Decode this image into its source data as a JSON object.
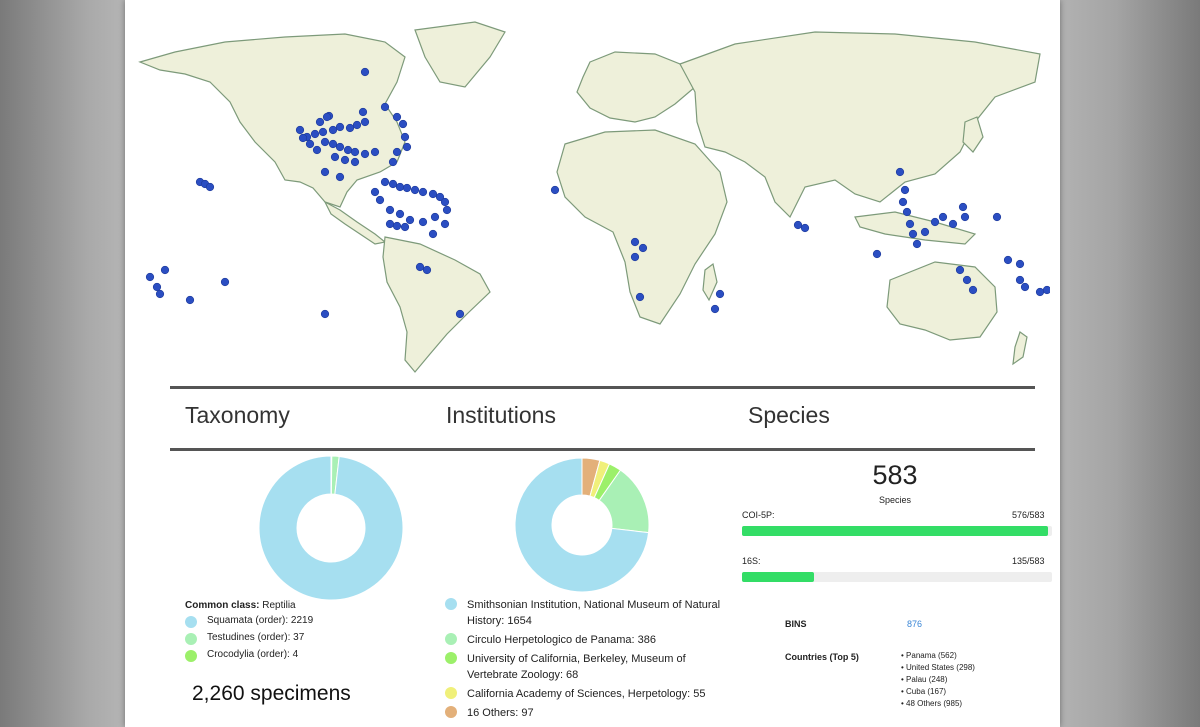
{
  "headers": {
    "taxonomy": "Taxonomy",
    "institutions": "Institutions",
    "species": "Species"
  },
  "taxonomy": {
    "common_class_label": "Common class:",
    "common_class_value": "Reptilia",
    "items": [
      {
        "label": "Squamata (order): 2219",
        "value": 2219,
        "color": "#a6dff0"
      },
      {
        "label": "Testudines (order): 37",
        "value": 37,
        "color": "#a9f0b5"
      },
      {
        "label": "Crocodylia (order): 4",
        "value": 4,
        "color": "#9cf06a"
      }
    ],
    "specimens": "2,260 specimens"
  },
  "institutions": {
    "items": [
      {
        "label": "Smithsonian Institution, National Museum of Natural History: 1654",
        "value": 1654,
        "color": "#a6dff0"
      },
      {
        "label": "Circulo Herpetologico de Panama: 386",
        "value": 386,
        "color": "#a9f0b5"
      },
      {
        "label": "University of California, Berkeley, Museum of Vertebrate Zoology: 68",
        "value": 68,
        "color": "#9cf06a"
      },
      {
        "label": "California Academy of Sciences, Herpetology: 55",
        "value": 55,
        "color": "#f0f07a"
      },
      {
        "label": "16 Others: 97",
        "value": 97,
        "color": "#e3b07a"
      }
    ]
  },
  "species": {
    "count": "583",
    "count_label": "Species",
    "markers": [
      {
        "name": "COI-5P:",
        "ratio": "576/583",
        "value": 576,
        "total": 583
      },
      {
        "name": "16S:",
        "ratio": "135/583",
        "value": 135,
        "total": 583
      }
    ],
    "bins_label": "BINS",
    "bins_value": "876",
    "countries_label": "Countries (Top 5)",
    "countries": [
      "Panama (562)",
      "United States (298)",
      "Palau (248)",
      "Cuba (167)",
      "48 Others (985)"
    ]
  },
  "colors": {
    "land": "#eef0da",
    "land_stroke": "#7d9a7a",
    "point": "#2b4ec2",
    "bar": "#33dd66"
  }
}
